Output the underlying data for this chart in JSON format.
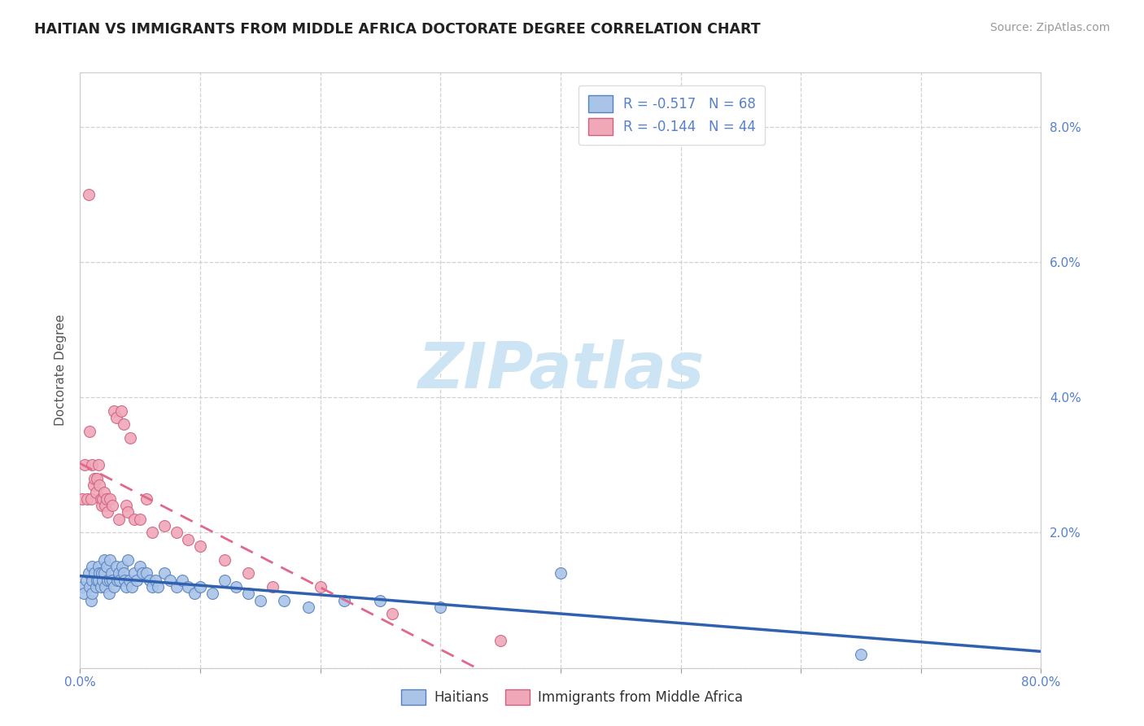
{
  "title": "HAITIAN VS IMMIGRANTS FROM MIDDLE AFRICA DOCTORATE DEGREE CORRELATION CHART",
  "source_text": "Source: ZipAtlas.com",
  "ylabel": "Doctorate Degree",
  "xlim": [
    0.0,
    0.8
  ],
  "ylim": [
    0.0,
    0.088
  ],
  "xticks": [
    0.0,
    0.1,
    0.2,
    0.3,
    0.4,
    0.5,
    0.6,
    0.7,
    0.8
  ],
  "yticks": [
    0.0,
    0.02,
    0.04,
    0.06,
    0.08
  ],
  "xtick_labels": [
    "0.0%",
    "",
    "",
    "",
    "",
    "",
    "",
    "",
    "80.0%"
  ],
  "ytick_labels_right": [
    "",
    "2.0%",
    "4.0%",
    "6.0%",
    "8.0%"
  ],
  "legend_r1": "R = -0.517",
  "legend_n1": "N = 68",
  "legend_r2": "R = -0.144",
  "legend_n2": "N = 44",
  "color_haitian": "#aac4e8",
  "color_midafrica": "#f0a8b8",
  "color_haitian_edge": "#5580c0",
  "color_midafrica_edge": "#d06080",
  "color_trend_haitian": "#3060b0",
  "color_trend_midafrica": "#e06888",
  "haitian_x": [
    0.002,
    0.003,
    0.005,
    0.007,
    0.008,
    0.009,
    0.01,
    0.01,
    0.01,
    0.012,
    0.013,
    0.014,
    0.015,
    0.015,
    0.016,
    0.017,
    0.018,
    0.019,
    0.02,
    0.02,
    0.021,
    0.022,
    0.023,
    0.024,
    0.025,
    0.025,
    0.026,
    0.027,
    0.028,
    0.03,
    0.031,
    0.032,
    0.033,
    0.035,
    0.036,
    0.037,
    0.038,
    0.04,
    0.041,
    0.043,
    0.045,
    0.047,
    0.05,
    0.052,
    0.055,
    0.058,
    0.06,
    0.063,
    0.065,
    0.07,
    0.075,
    0.08,
    0.085,
    0.09,
    0.095,
    0.1,
    0.11,
    0.12,
    0.13,
    0.14,
    0.15,
    0.17,
    0.19,
    0.22,
    0.25,
    0.3,
    0.4,
    0.65
  ],
  "haitian_y": [
    0.012,
    0.011,
    0.013,
    0.014,
    0.012,
    0.01,
    0.015,
    0.013,
    0.011,
    0.014,
    0.012,
    0.013,
    0.015,
    0.013,
    0.014,
    0.012,
    0.014,
    0.013,
    0.016,
    0.014,
    0.012,
    0.015,
    0.013,
    0.011,
    0.016,
    0.013,
    0.014,
    0.013,
    0.012,
    0.015,
    0.013,
    0.014,
    0.013,
    0.015,
    0.014,
    0.013,
    0.012,
    0.016,
    0.013,
    0.012,
    0.014,
    0.013,
    0.015,
    0.014,
    0.014,
    0.013,
    0.012,
    0.013,
    0.012,
    0.014,
    0.013,
    0.012,
    0.013,
    0.012,
    0.011,
    0.012,
    0.011,
    0.013,
    0.012,
    0.011,
    0.01,
    0.01,
    0.009,
    0.01,
    0.01,
    0.009,
    0.014,
    0.002
  ],
  "midafrica_x": [
    0.002,
    0.004,
    0.006,
    0.007,
    0.008,
    0.009,
    0.01,
    0.011,
    0.012,
    0.013,
    0.014,
    0.015,
    0.016,
    0.017,
    0.018,
    0.019,
    0.02,
    0.021,
    0.022,
    0.023,
    0.025,
    0.027,
    0.028,
    0.03,
    0.032,
    0.034,
    0.036,
    0.038,
    0.04,
    0.042,
    0.045,
    0.05,
    0.055,
    0.06,
    0.07,
    0.08,
    0.09,
    0.1,
    0.12,
    0.14,
    0.16,
    0.2,
    0.26,
    0.35
  ],
  "midafrica_y": [
    0.025,
    0.03,
    0.025,
    0.07,
    0.035,
    0.025,
    0.03,
    0.027,
    0.028,
    0.026,
    0.028,
    0.03,
    0.027,
    0.025,
    0.024,
    0.025,
    0.026,
    0.024,
    0.025,
    0.023,
    0.025,
    0.024,
    0.038,
    0.037,
    0.022,
    0.038,
    0.036,
    0.024,
    0.023,
    0.034,
    0.022,
    0.022,
    0.025,
    0.02,
    0.021,
    0.02,
    0.019,
    0.018,
    0.016,
    0.014,
    0.012,
    0.012,
    0.008,
    0.004
  ],
  "background_color": "#ffffff",
  "grid_color": "#cccccc",
  "title_color": "#222222",
  "tick_color": "#5580cc"
}
